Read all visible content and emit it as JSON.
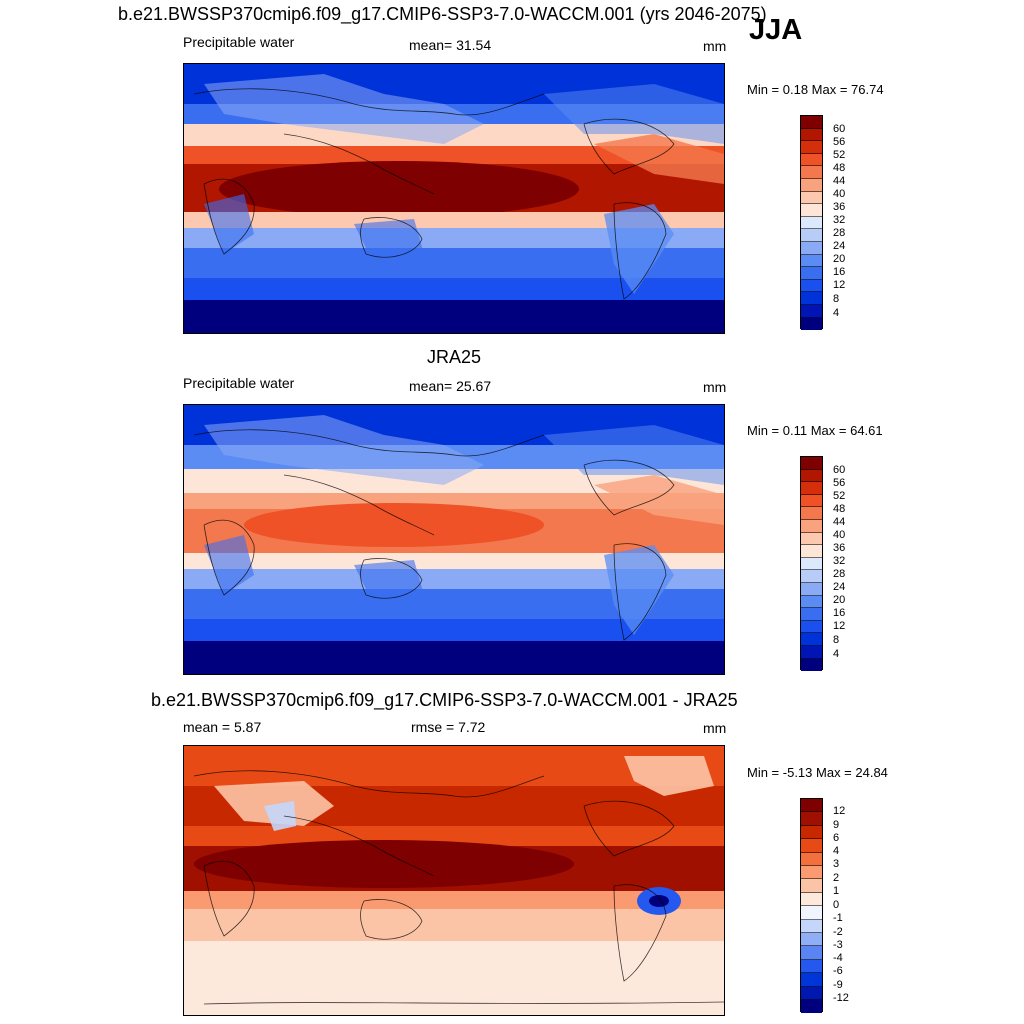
{
  "season": "JJA",
  "colors": {
    "abs_palette": [
      "#00007f",
      "#0015b3",
      "#0032d9",
      "#1a50f0",
      "#3a6ef0",
      "#5a8cf4",
      "#8aaaf6",
      "#b8ccf8",
      "#dce8fc",
      "#fde6d8",
      "#fcc8b0",
      "#f9a27e",
      "#f4784e",
      "#ee5226",
      "#d42e0a",
      "#b01600",
      "#7f0000"
    ],
    "diff_palette": [
      "#00007f",
      "#0018b0",
      "#0036d8",
      "#2458ee",
      "#5a84f2",
      "#90aef6",
      "#c4d6fa",
      "#f0f4fe",
      "#fde8dc",
      "#fcc4a6",
      "#f99a70",
      "#f2703e",
      "#e84a16",
      "#c82800",
      "#a01000",
      "#7f0000"
    ]
  },
  "panels": [
    {
      "title": "b.e21.BWSSP370cmip6.f09_g17.CMIP6-SSP3-7.0-WACCM.001 (yrs 2046-2075)",
      "left_label": "Precipitable water",
      "center_label": "mean=  31.54",
      "units": "mm",
      "minmax": "Min =   0.18 Max =  76.74",
      "colorbar_ticks": [
        "60",
        "56",
        "52",
        "48",
        "44",
        "40",
        "36",
        "32",
        "28",
        "24",
        "20",
        "16",
        "12",
        "8",
        "4"
      ]
    },
    {
      "title": "JRA25",
      "left_label": "Precipitable water",
      "center_label": "mean=  25.67",
      "units": "mm",
      "minmax": "Min =   0.11 Max =  64.61",
      "colorbar_ticks": [
        "60",
        "56",
        "52",
        "48",
        "44",
        "40",
        "36",
        "32",
        "28",
        "24",
        "20",
        "16",
        "12",
        "8",
        "4"
      ]
    },
    {
      "title": "b.e21.BWSSP370cmip6.f09_g17.CMIP6-SSP3-7.0-WACCM.001 - JRA25",
      "left_label": "mean =   5.87",
      "center_label": "rmse =   7.72",
      "units": "mm",
      "minmax": "Min =  -5.13 Max =  24.84",
      "colorbar_ticks": [
        "12",
        "9",
        "6",
        "4",
        "3",
        "2",
        "1",
        "0",
        "-1",
        "-2",
        "-3",
        "-4",
        "-6",
        "-9",
        "-12"
      ]
    }
  ]
}
